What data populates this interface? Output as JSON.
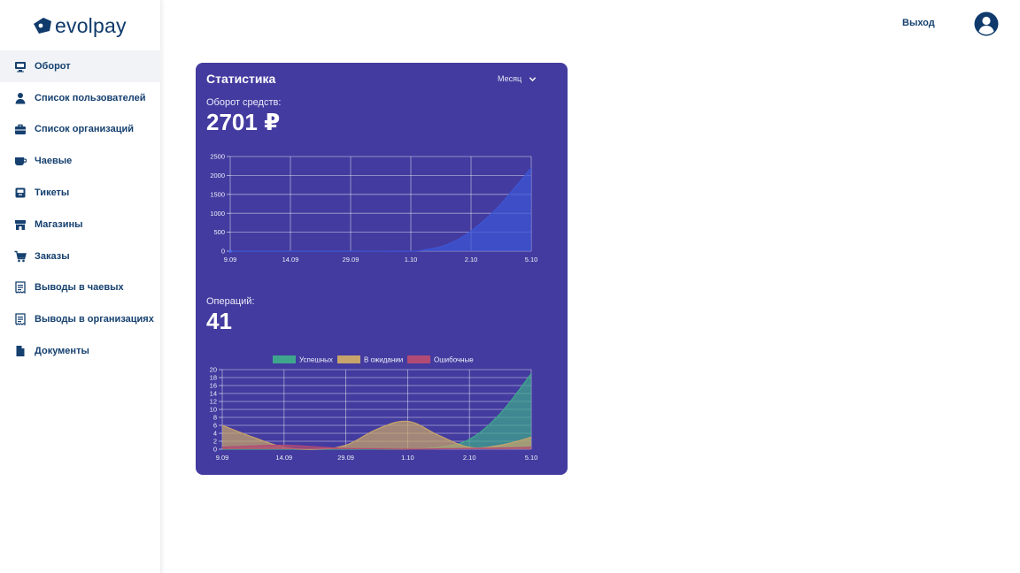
{
  "brand": {
    "name": "evolpay"
  },
  "sidebar": {
    "items": [
      {
        "label": "Оборот",
        "icon": "dashboard-icon",
        "active": true
      },
      {
        "label": "Список пользователей",
        "icon": "user-icon",
        "active": false
      },
      {
        "label": "Список организаций",
        "icon": "briefcase-icon",
        "active": false
      },
      {
        "label": "Чаевые",
        "icon": "cup-icon",
        "active": false
      },
      {
        "label": "Тикеты",
        "icon": "inbox-icon",
        "active": false
      },
      {
        "label": "Магазины",
        "icon": "store-icon",
        "active": false
      },
      {
        "label": "Заказы",
        "icon": "cart-icon",
        "active": false
      },
      {
        "label": "Выводы в чаевых",
        "icon": "receipt-icon",
        "active": false
      },
      {
        "label": "Выводы в организациях",
        "icon": "receipt-icon",
        "active": false
      },
      {
        "label": "Документы",
        "icon": "document-icon",
        "active": false
      }
    ]
  },
  "topbar": {
    "logout_label": "Выход"
  },
  "stats": {
    "title": "Статистика",
    "period_selected": "Месяц",
    "turnover_label": "Оборот средств:",
    "turnover_value": "2701 ₽",
    "operations_label": "Операций:",
    "operations_value": "41"
  },
  "colors": {
    "card_bg": "#433b9f",
    "turnover_fill": "#3d56d6",
    "success": "#3fa68d",
    "pending": "#c7a46b",
    "error": "#b24b74",
    "accent": "#15406f"
  },
  "chart_data": [
    {
      "type": "area",
      "x_ticks": [
        "9.09",
        "14.09",
        "29.09",
        "1.10",
        "2.10",
        "5.10"
      ],
      "x": [
        0,
        1,
        2,
        3,
        3.25,
        3.5,
        3.75,
        4,
        4.25,
        4.5,
        4.75,
        5
      ],
      "series": [
        {
          "values": [
            0,
            0,
            0,
            0,
            40,
            120,
            280,
            530,
            860,
            1250,
            1720,
            2200
          ]
        }
      ],
      "ylim": [
        0,
        2500
      ],
      "y_ticks": [
        0,
        500,
        1000,
        1500,
        2000,
        2500
      ],
      "grid": true,
      "legend": "none"
    },
    {
      "type": "area",
      "x_ticks": [
        "9.09",
        "14.09",
        "29.09",
        "1.10",
        "2.10",
        "5.10"
      ],
      "x": [
        0,
        0.5,
        1,
        1.5,
        2,
        2.5,
        3,
        3.5,
        4,
        4.5,
        5
      ],
      "series": [
        {
          "name": "Успешных",
          "values": [
            0,
            0,
            0,
            0,
            0,
            0,
            0,
            0.5,
            2.5,
            9,
            19
          ]
        },
        {
          "name": "В ожидании",
          "values": [
            6,
            3,
            0.5,
            0,
            1,
            5,
            7,
            3.5,
            0.5,
            1,
            3
          ]
        },
        {
          "name": "Ошибочные",
          "values": [
            0.5,
            0.8,
            1,
            0.6,
            0.2,
            0.1,
            0,
            0.1,
            0.2,
            0.3,
            0.5
          ]
        }
      ],
      "ylim": [
        0,
        20
      ],
      "y_ticks": [
        0,
        2,
        4,
        6,
        8,
        10,
        12,
        14,
        16,
        18,
        20
      ],
      "grid": true,
      "legend": "top"
    }
  ]
}
